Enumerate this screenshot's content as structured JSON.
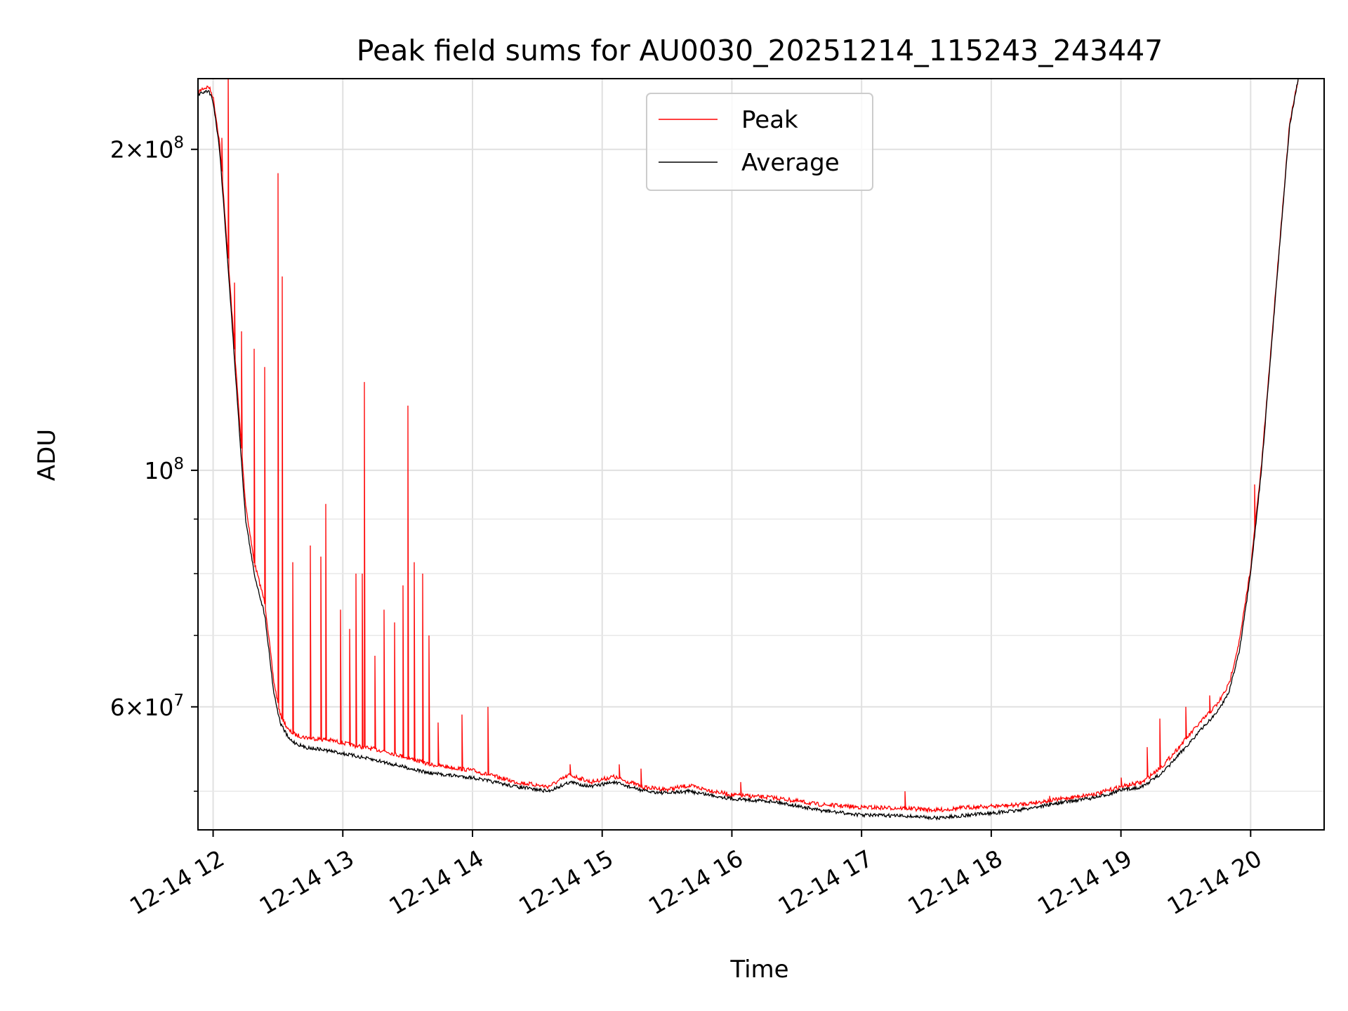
{
  "chart_data": {
    "type": "line",
    "title": "Peak field sums for AU0030_20251214_115243_243447",
    "xlabel": "Time",
    "ylabel": "ADU",
    "yscale": "log",
    "xlim": [
      "2025-12-14 11:53",
      "2025-12-14 20:34"
    ],
    "ylim": [
      46000000,
      233000000
    ],
    "x_tick_labels": [
      "12-14 12",
      "12-14 13",
      "12-14 14",
      "12-14 15",
      "12-14 16",
      "12-14 17",
      "12-14 18",
      "12-14 19",
      "12-14 20"
    ],
    "y_tick_labels": [
      {
        "value": 200000000,
        "mantissa": "2",
        "exponent": "8"
      },
      {
        "value": 100000000,
        "mantissa": "",
        "exponent": "8"
      },
      {
        "value": 60000000,
        "mantissa": "6",
        "exponent": "7"
      }
    ],
    "y_minor_ticks": [
      50000000,
      70000000,
      80000000,
      90000000
    ],
    "grid": true,
    "legend_position": "upper-center",
    "series": [
      {
        "name": "Average",
        "color": "#000000",
        "x": [
          "2025-12-14 11:53",
          "2025-12-14 11:55",
          "2025-12-14 11:58",
          "2025-12-14 12:00",
          "2025-12-14 12:03",
          "2025-12-14 12:06",
          "2025-12-14 12:09",
          "2025-12-14 12:12",
          "2025-12-14 12:15",
          "2025-12-14 12:19",
          "2025-12-14 12:24",
          "2025-12-14 12:28",
          "2025-12-14 12:31",
          "2025-12-14 12:35",
          "2025-12-14 12:38",
          "2025-12-14 12:42",
          "2025-12-14 12:48",
          "2025-12-14 12:55",
          "2025-12-14 13:05",
          "2025-12-14 13:20",
          "2025-12-14 13:40",
          "2025-12-14 14:00",
          "2025-12-14 14:20",
          "2025-12-14 14:35",
          "2025-12-14 14:45",
          "2025-12-14 14:55",
          "2025-12-14 15:05",
          "2025-12-14 15:20",
          "2025-12-14 15:30",
          "2025-12-14 15:40",
          "2025-12-14 16:00",
          "2025-12-14 16:20",
          "2025-12-14 16:40",
          "2025-12-14 17:00",
          "2025-12-14 17:20",
          "2025-12-14 17:35",
          "2025-12-14 17:50",
          "2025-12-14 18:10",
          "2025-12-14 18:30",
          "2025-12-14 18:50",
          "2025-12-14 19:00",
          "2025-12-14 19:10",
          "2025-12-14 19:20",
          "2025-12-14 19:35",
          "2025-12-14 19:45",
          "2025-12-14 19:50",
          "2025-12-14 19:55",
          "2025-12-14 20:00",
          "2025-12-14 20:05",
          "2025-12-14 20:12",
          "2025-12-14 20:18",
          "2025-12-14 20:22"
        ],
        "y": [
          225000000,
          226000000,
          227000000,
          222000000,
          200000000,
          165000000,
          135000000,
          110000000,
          90000000,
          80000000,
          73000000,
          62000000,
          58000000,
          56000000,
          55500000,
          55000000,
          54800000,
          54500000,
          54000000,
          53200000,
          52000000,
          51500000,
          50500000,
          50000000,
          51000000,
          50500000,
          51000000,
          50000000,
          49800000,
          50000000,
          49200000,
          48900000,
          48000000,
          47500000,
          47400000,
          47200000,
          47500000,
          47900000,
          48700000,
          49400000,
          50100000,
          50500000,
          52200000,
          56500000,
          59500000,
          62000000,
          68000000,
          80000000,
          100000000,
          150000000,
          210000000,
          233000000
        ]
      },
      {
        "name": "Peak",
        "color": "#ff0000",
        "x": [
          "2025-12-14 11:53",
          "2025-12-14 11:55",
          "2025-12-14 11:58",
          "2025-12-14 12:00",
          "2025-12-14 12:03",
          "2025-12-14 12:06",
          "2025-12-14 12:09",
          "2025-12-14 12:12",
          "2025-12-14 12:15",
          "2025-12-14 12:19",
          "2025-12-14 12:24",
          "2025-12-14 12:28",
          "2025-12-14 12:31",
          "2025-12-14 12:35",
          "2025-12-14 12:38",
          "2025-12-14 12:42",
          "2025-12-14 12:48",
          "2025-12-14 12:55",
          "2025-12-14 13:05",
          "2025-12-14 13:20",
          "2025-12-14 13:40",
          "2025-12-14 14:00",
          "2025-12-14 14:20",
          "2025-12-14 14:35",
          "2025-12-14 14:45",
          "2025-12-14 14:55",
          "2025-12-14 15:05",
          "2025-12-14 15:20",
          "2025-12-14 15:30",
          "2025-12-14 15:40",
          "2025-12-14 16:00",
          "2025-12-14 16:20",
          "2025-12-14 16:40",
          "2025-12-14 17:00",
          "2025-12-14 17:20",
          "2025-12-14 17:35",
          "2025-12-14 17:50",
          "2025-12-14 18:10",
          "2025-12-14 18:30",
          "2025-12-14 18:50",
          "2025-12-14 19:00",
          "2025-12-14 19:10",
          "2025-12-14 19:20",
          "2025-12-14 19:35",
          "2025-12-14 19:45",
          "2025-12-14 19:50",
          "2025-12-14 19:55",
          "2025-12-14 20:00",
          "2025-12-14 20:05",
          "2025-12-14 20:12",
          "2025-12-14 20:18",
          "2025-12-14 20:22"
        ],
        "y": [
          226000000,
          228000000,
          229000000,
          224000000,
          203000000,
          168000000,
          138000000,
          113000000,
          93000000,
          82000000,
          75000000,
          63500000,
          59000000,
          57000000,
          56500000,
          56200000,
          56000000,
          55800000,
          55200000,
          54500000,
          53000000,
          52300000,
          51000000,
          50500000,
          51800000,
          51000000,
          51600000,
          50400000,
          50200000,
          50600000,
          49600000,
          49300000,
          48600000,
          48300000,
          48200000,
          48000000,
          48300000,
          48500000,
          49100000,
          49800000,
          50500000,
          51000000,
          53000000,
          57500000,
          60500000,
          63000000,
          69500000,
          81000000,
          101000000,
          151000000,
          211000000,
          233000000
        ],
        "spikes": [
          {
            "x": "2025-12-14 12:04",
            "y": 205000000
          },
          {
            "x": "2025-12-14 12:07",
            "y": 240000000
          },
          {
            "x": "2025-12-14 12:10",
            "y": 150000000
          },
          {
            "x": "2025-12-14 12:13",
            "y": 135000000
          },
          {
            "x": "2025-12-14 12:19",
            "y": 130000000
          },
          {
            "x": "2025-12-14 12:24",
            "y": 125000000
          },
          {
            "x": "2025-12-14 12:30",
            "y": 190000000
          },
          {
            "x": "2025-12-14 12:32",
            "y": 152000000
          },
          {
            "x": "2025-12-14 12:37",
            "y": 82000000
          },
          {
            "x": "2025-12-14 12:45",
            "y": 85000000
          },
          {
            "x": "2025-12-14 12:50",
            "y": 83000000
          },
          {
            "x": "2025-12-14 12:52",
            "y": 93000000
          },
          {
            "x": "2025-12-14 12:59",
            "y": 74000000
          },
          {
            "x": "2025-12-14 13:03",
            "y": 71000000
          },
          {
            "x": "2025-12-14 13:06",
            "y": 80000000
          },
          {
            "x": "2025-12-14 13:09",
            "y": 80000000
          },
          {
            "x": "2025-12-14 13:10",
            "y": 121000000
          },
          {
            "x": "2025-12-14 13:15",
            "y": 67000000
          },
          {
            "x": "2025-12-14 13:19",
            "y": 74000000
          },
          {
            "x": "2025-12-14 13:24",
            "y": 72000000
          },
          {
            "x": "2025-12-14 13:28",
            "y": 78000000
          },
          {
            "x": "2025-12-14 13:30",
            "y": 115000000
          },
          {
            "x": "2025-12-14 13:33",
            "y": 82000000
          },
          {
            "x": "2025-12-14 13:37",
            "y": 80000000
          },
          {
            "x": "2025-12-14 13:40",
            "y": 70000000
          },
          {
            "x": "2025-12-14 13:44",
            "y": 58000000
          },
          {
            "x": "2025-12-14 13:55",
            "y": 59000000
          },
          {
            "x": "2025-12-14 14:07",
            "y": 60000000
          },
          {
            "x": "2025-12-14 14:45",
            "y": 53000000
          },
          {
            "x": "2025-12-14 15:08",
            "y": 53000000
          },
          {
            "x": "2025-12-14 15:18",
            "y": 52500000
          },
          {
            "x": "2025-12-14 16:04",
            "y": 51000000
          },
          {
            "x": "2025-12-14 17:20",
            "y": 50000000
          },
          {
            "x": "2025-12-14 18:27",
            "y": 49500000
          },
          {
            "x": "2025-12-14 19:00",
            "y": 51500000
          },
          {
            "x": "2025-12-14 19:12",
            "y": 55000000
          },
          {
            "x": "2025-12-14 19:18",
            "y": 58500000
          },
          {
            "x": "2025-12-14 19:30",
            "y": 60000000
          },
          {
            "x": "2025-12-14 19:41",
            "y": 61500000
          },
          {
            "x": "2025-12-14 20:02",
            "y": 97000000
          }
        ]
      }
    ]
  }
}
